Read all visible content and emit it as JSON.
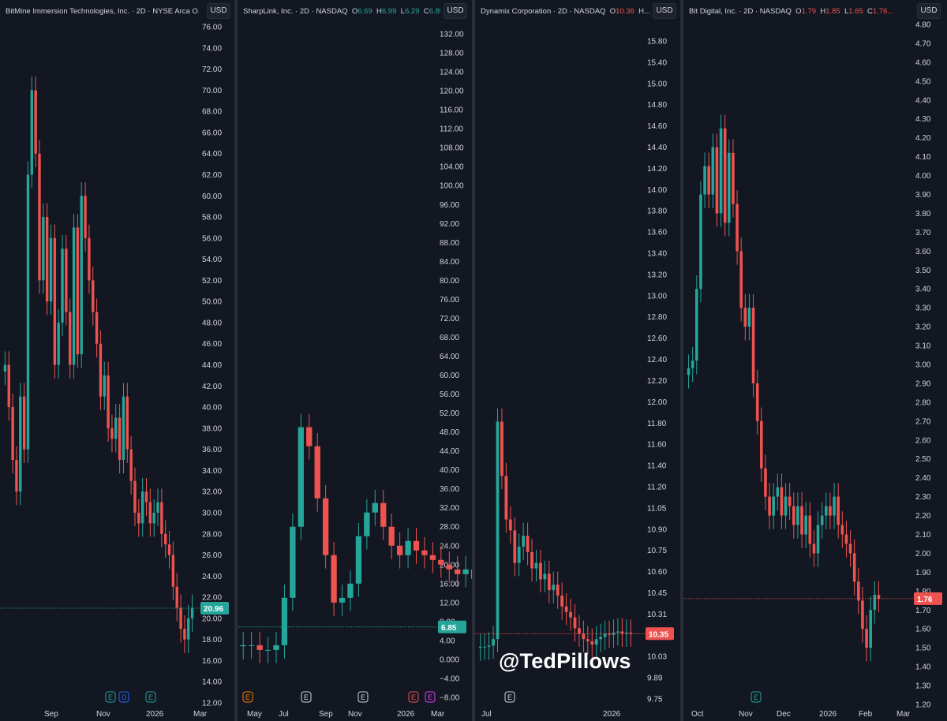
{
  "theme": {
    "background": "#131722",
    "up_color": "#26a69a",
    "down_color": "#ef5350",
    "text_color": "#d1d4dc",
    "grid_color": "#1e222d"
  },
  "watermark": "@TedPillows",
  "currency_label": "USD",
  "panels": [
    {
      "title": {
        "name": "BitMine Immersion Technologies, Inc.",
        "interval": "2D",
        "exchange": "NYSE Arca",
        "ohlc": "O..."
      },
      "last_price_label": "20.96",
      "last_color": "#26a69a",
      "x_labels": [
        "Sep",
        "Nov",
        "2026",
        "Mar"
      ],
      "event_markers": [
        {
          "text": "E",
          "color": "#26a69a"
        },
        {
          "text": "D",
          "color": "#2962ff"
        },
        {
          "text": "E",
          "color": "#26a69a"
        }
      ]
    },
    {
      "title": {
        "name": "SharpLink, Inc.",
        "interval": "2D",
        "exchange": "NASDAQ",
        "o": "6.69",
        "h": "6.99",
        "l": "6.29",
        "c": "6.85..."
      },
      "last_price_label": "6.85",
      "last_color": "#26a69a",
      "x_labels": [
        "May",
        "Jul",
        "Sep",
        "Nov",
        "2026",
        "Mar"
      ],
      "event_markers": [
        {
          "text": "E",
          "color": "#f57c00"
        },
        {
          "text": "E",
          "color": "#d1d4dc"
        },
        {
          "text": "E",
          "color": "#d1d4dc"
        },
        {
          "text": "E",
          "color": "#ef5350"
        },
        {
          "text": "E",
          "color": "#e040fb"
        }
      ]
    },
    {
      "title": {
        "name": "Dynamix Corporation",
        "interval": "2D",
        "exchange": "NASDAQ",
        "o": "10.36",
        "h_trunc": "H..."
      },
      "last_price_label": "10.35",
      "last_color": "#ef5350",
      "x_labels": [
        "Jul",
        "2026"
      ],
      "event_markers": [
        {
          "text": "E",
          "color": "#d1d4dc"
        }
      ]
    },
    {
      "title": {
        "name": "Bit Digital, Inc.",
        "interval": "2D",
        "exchange": "NASDAQ",
        "o": "1.79",
        "h": "1.85",
        "l": "1.65",
        "c": "1.76..."
      },
      "last_price_label": "1.76",
      "last_color": "#ef5350",
      "x_labels": [
        "Oct",
        "Nov",
        "Dec",
        "2026",
        "Feb",
        "Mar"
      ],
      "event_markers": [
        {
          "text": "E",
          "color": "#26a69a"
        }
      ]
    }
  ],
  "chart_data": [
    {
      "type": "candlestick",
      "title": "BitMine Immersion Technologies, Inc. · 2D · NYSE Arca",
      "y_ticks": [
        "76.00",
        "74.00",
        "72.00",
        "70.00",
        "68.00",
        "66.00",
        "64.00",
        "62.00",
        "60.00",
        "58.00",
        "56.00",
        "54.00",
        "52.00",
        "50.00",
        "48.00",
        "46.00",
        "44.00",
        "42.00",
        "40.00",
        "38.00",
        "36.00",
        "34.00",
        "32.00",
        "30.00",
        "28.00",
        "26.00",
        "24.00",
        "22.00",
        "20.00",
        "18.00",
        "16.00",
        "14.00",
        "12.00"
      ],
      "ylim": [
        12,
        76
      ],
      "last_price": 20.96,
      "closes": [
        44,
        40,
        35,
        32,
        41,
        36,
        62,
        70,
        64,
        52,
        58,
        50,
        56,
        44,
        48,
        55,
        49,
        44,
        57,
        45,
        60,
        56,
        52,
        49,
        46,
        41,
        43,
        38,
        37,
        39,
        35,
        41,
        36,
        33,
        30,
        29,
        32,
        31,
        29,
        30,
        31,
        28,
        27,
        26,
        23,
        21,
        19,
        18,
        20,
        21
      ]
    },
    {
      "type": "candlestick",
      "title": "SharpLink, Inc. · 2D · NASDAQ",
      "y_ticks": [
        "132.00",
        "128.00",
        "124.00",
        "120.00",
        "116.00",
        "112.00",
        "108.00",
        "104.00",
        "100.00",
        "96.00",
        "92.00",
        "88.00",
        "84.00",
        "80.00",
        "76.00",
        "72.00",
        "68.00",
        "64.00",
        "60.00",
        "56.00",
        "52.00",
        "48.00",
        "44.00",
        "40.00",
        "36.00",
        "32.00",
        "28.00",
        "24.00",
        "20.00",
        "16.00",
        "12.00",
        "8.00",
        "4.00",
        "0.000",
        "−4.00",
        "−8.00"
      ],
      "ylim": [
        -8,
        132
      ],
      "last_price": 6.85,
      "closes": [
        3,
        3,
        2,
        2,
        3,
        13,
        28,
        49,
        45,
        34,
        22,
        12,
        13,
        16,
        26,
        31,
        33,
        28,
        24,
        22,
        25,
        23,
        22,
        21,
        20,
        19,
        18,
        19,
        17,
        18,
        16,
        15,
        16,
        14,
        13,
        12,
        11,
        10,
        11,
        12,
        11,
        10,
        10,
        9,
        10,
        11,
        10,
        10,
        9,
        8,
        7,
        7
      ]
    },
    {
      "type": "candlestick",
      "title": "Dynamix Corporation · 2D · NASDAQ",
      "y_ticks": [
        "15.80",
        "15.40",
        "15.00",
        "14.80",
        "14.60",
        "14.40",
        "14.20",
        "14.00",
        "13.80",
        "13.60",
        "13.40",
        "13.20",
        "13.00",
        "12.80",
        "12.60",
        "12.40",
        "12.20",
        "12.00",
        "11.80",
        "11.60",
        "11.40",
        "11.20",
        "11.05",
        "10.90",
        "10.75",
        "10.60",
        "10.45",
        "10.31",
        "10.17",
        "10.03",
        "9.89",
        "9.75"
      ],
      "ylim": [
        9.75,
        15.8
      ],
      "last_price": 10.35,
      "closes": [
        10.23,
        10.23,
        10.24,
        10.3,
        12.3,
        11.8,
        11.4,
        11.3,
        11.0,
        11.15,
        11.25,
        11.1,
        10.95,
        11.0,
        10.85,
        10.9,
        10.75,
        10.8,
        10.7,
        10.6,
        10.55,
        10.5,
        10.4,
        10.35,
        10.3,
        10.28,
        10.25,
        10.3,
        10.32,
        10.35,
        10.34,
        10.36,
        10.37,
        10.35,
        10.36,
        10.35
      ]
    },
    {
      "type": "candlestick",
      "title": "Bit Digital, Inc. · 2D · NASDAQ",
      "y_ticks": [
        "4.80",
        "4.70",
        "4.60",
        "4.50",
        "4.40",
        "4.30",
        "4.20",
        "4.10",
        "4.00",
        "3.90",
        "3.80",
        "3.70",
        "3.60",
        "3.50",
        "3.40",
        "3.30",
        "3.20",
        "3.10",
        "3.00",
        "2.90",
        "2.80",
        "2.70",
        "2.60",
        "2.50",
        "2.40",
        "2.30",
        "2.20",
        "2.10",
        "2.00",
        "1.90",
        "1.80",
        "1.70",
        "1.60",
        "1.50",
        "1.40",
        "1.30",
        "1.20"
      ],
      "ylim": [
        1.2,
        4.8
      ],
      "last_price": 1.76,
      "closes": [
        2.98,
        3.02,
        3.4,
        3.9,
        4.05,
        3.9,
        4.15,
        3.8,
        4.25,
        3.75,
        4.12,
        3.85,
        3.6,
        3.3,
        3.2,
        3.3,
        2.9,
        2.7,
        2.45,
        2.3,
        2.2,
        2.3,
        2.35,
        2.2,
        2.3,
        2.25,
        2.15,
        2.25,
        2.1,
        2.2,
        2.05,
        2.0,
        2.15,
        2.2,
        2.25,
        2.2,
        2.3,
        2.15,
        2.1,
        2.05,
        2.0,
        1.85,
        1.75,
        1.6,
        1.5,
        1.7,
        1.78,
        1.76
      ]
    }
  ]
}
